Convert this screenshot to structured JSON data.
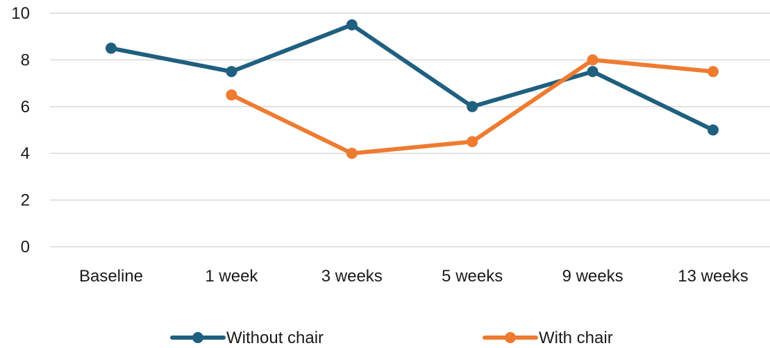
{
  "chart_data": {
    "type": "line",
    "categories": [
      "Baseline",
      "1 week",
      "3 weeks",
      "5 weeks",
      "9 weeks",
      "13 weeks"
    ],
    "ylim": [
      0,
      10
    ],
    "yticks": [
      0,
      2,
      4,
      6,
      8,
      10
    ],
    "grid": true,
    "legend_position": "bottom",
    "series": [
      {
        "name": "Without chair",
        "color": "#1f5f7f",
        "values": [
          8.5,
          7.5,
          9.5,
          6.0,
          7.5,
          5.0
        ]
      },
      {
        "name": "With chair",
        "color": "#ee7b30",
        "values": [
          null,
          6.5,
          4.0,
          4.5,
          8.0,
          7.5
        ]
      }
    ]
  }
}
